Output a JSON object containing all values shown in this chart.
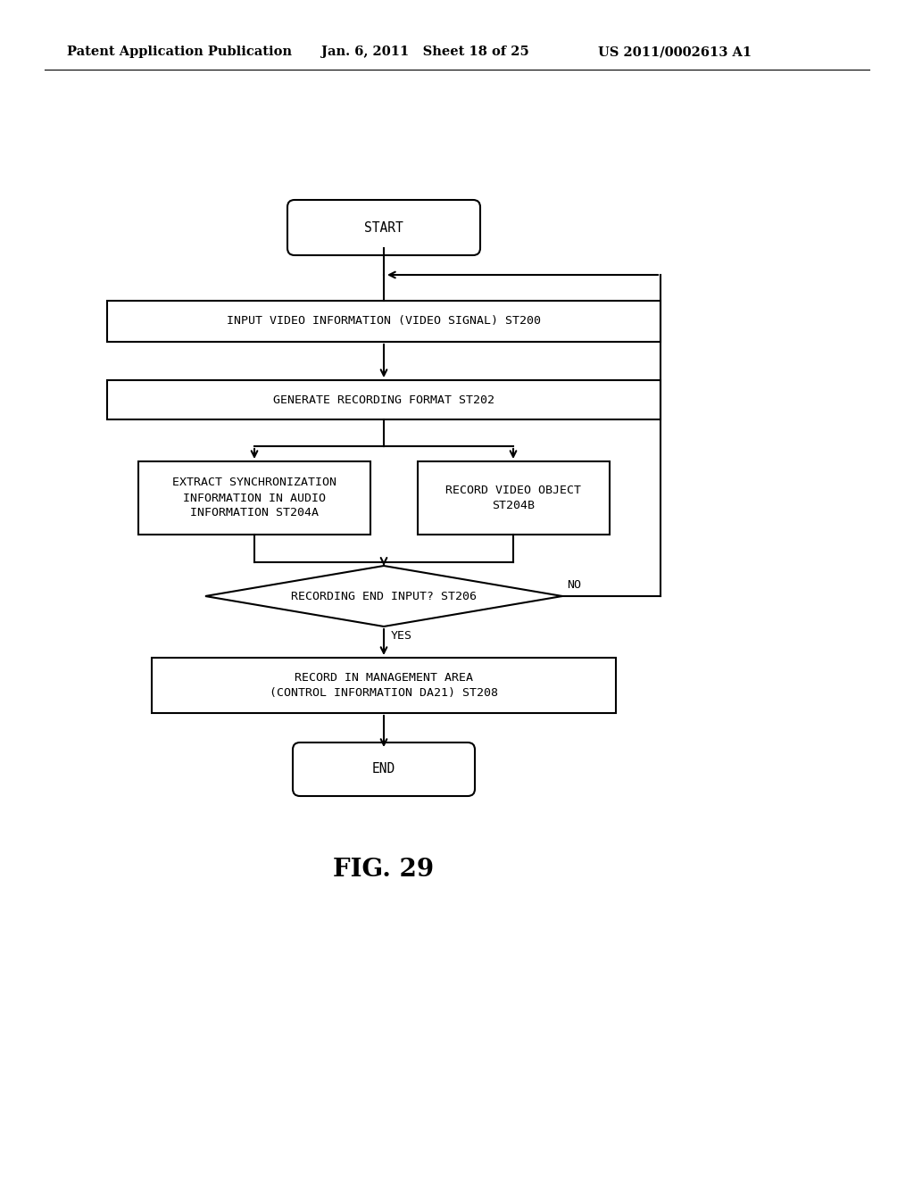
{
  "bg_color": "#ffffff",
  "header_left": "Patent Application Publication",
  "header_mid": "Jan. 6, 2011   Sheet 18 of 25",
  "header_right": "US 2011/0002613 A1",
  "fig_label": "FIG. 29",
  "font_size_nodes": 9.5,
  "font_size_header": 10.5,
  "font_size_fig": 20,
  "start_text": "START",
  "st200_text": "INPUT VIDEO INFORMATION (VIDEO SIGNAL) ST200",
  "st202_text": "GENERATE RECORDING FORMAT ST202",
  "st204a_text": "EXTRACT SYNCHRONIZATION\nINFORMATION IN AUDIO\nINFORMATION ST204A",
  "st204b_text": "RECORD VIDEO OBJECT\nST204B",
  "st206_text": "RECORDING END INPUT? ST206",
  "st208_text": "RECORD IN MANAGEMENT AREA\n(CONTROL INFORMATION DA21) ST208",
  "end_text": "END",
  "yes_label": "YES",
  "no_label": "NO"
}
